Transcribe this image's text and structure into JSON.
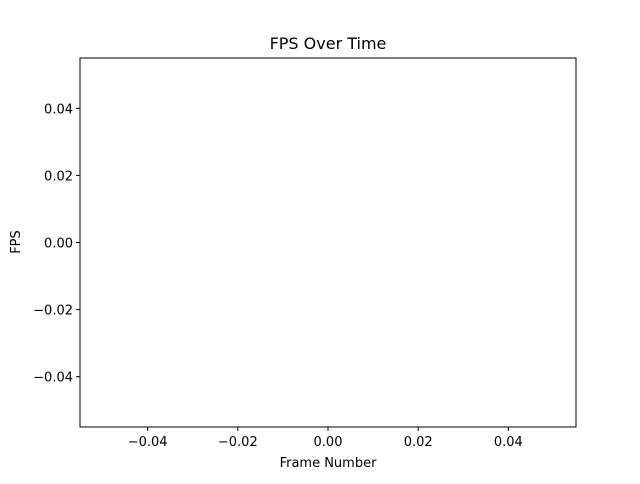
{
  "chart_data": {
    "type": "line",
    "title": "FPS Over Time",
    "xlabel": "Frame Number",
    "ylabel": "FPS",
    "xlim": [
      -0.055,
      0.055
    ],
    "ylim": [
      -0.055,
      0.055
    ],
    "xticks": [
      -0.04,
      -0.02,
      0.0,
      0.02,
      0.04
    ],
    "yticks": [
      -0.04,
      -0.02,
      0.0,
      0.02,
      0.04
    ],
    "xtick_labels": [
      "−0.04",
      "−0.02",
      "0.00",
      "0.02",
      "0.04"
    ],
    "ytick_labels": [
      "−0.04",
      "−0.02",
      "0.00",
      "0.02",
      "0.04"
    ],
    "series": [
      {
        "x": [],
        "y": []
      }
    ],
    "grid": false,
    "legend": "none"
  }
}
